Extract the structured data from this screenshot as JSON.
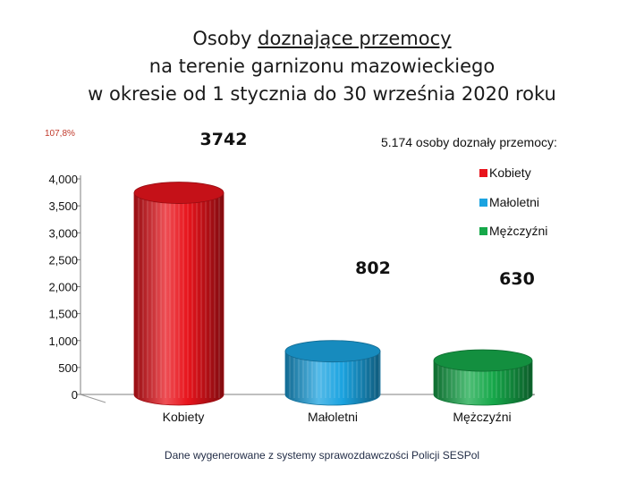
{
  "title": {
    "line1_a": "Osoby ",
    "line1_b": "doznające przemocy",
    "line2": "na terenie garnizonu mazowieckiego",
    "line3": "w okresie od 1 stycznia do 30 września 2020 roku"
  },
  "percent_note": "107,8%",
  "summary": "5.174 osoby doznały przemocy:",
  "source": "Dane wygenerowane z systemy sprawozdawczości Policji SESPol",
  "chart_data": {
    "type": "bar",
    "categories": [
      "Kobiety",
      "Małoletni",
      "Mężczyźni"
    ],
    "values": [
      3742,
      802,
      630
    ],
    "value_labels": [
      "3742",
      "802",
      "630"
    ],
    "colors": [
      "#e8141c",
      "#1ba3e0",
      "#16a84a"
    ],
    "ylim": [
      0,
      4000
    ],
    "yticks": [
      0,
      500,
      1000,
      1500,
      2000,
      2500,
      3000,
      3500,
      4000
    ],
    "ytick_labels": [
      "0",
      "500",
      "1,000",
      "1,500",
      "2,000",
      "2,500",
      "3,000",
      "3,500",
      "4,000"
    ],
    "legend": [
      {
        "name": "Kobiety",
        "color": "#e8141c"
      },
      {
        "name": "Małoletni",
        "color": "#1ba3e0"
      },
      {
        "name": "Mężczyźni",
        "color": "#16a84a"
      }
    ],
    "legend_position": "right",
    "grid": false
  }
}
